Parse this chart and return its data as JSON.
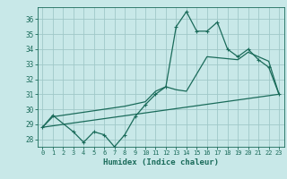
{
  "title": "",
  "xlabel": "Humidex (Indice chaleur)",
  "bg_color": "#c8e8e8",
  "grid_color": "#a0c8c8",
  "line_color": "#1a6b5a",
  "xlim": [
    -0.5,
    23.5
  ],
  "ylim": [
    27.5,
    36.8
  ],
  "yticks": [
    28,
    29,
    30,
    31,
    32,
    33,
    34,
    35,
    36
  ],
  "xticks": [
    0,
    1,
    2,
    3,
    4,
    5,
    6,
    7,
    8,
    9,
    10,
    11,
    12,
    13,
    14,
    15,
    16,
    17,
    18,
    19,
    20,
    21,
    22,
    23
  ],
  "series1_x": [
    0,
    1,
    3,
    4,
    5,
    6,
    7,
    8,
    9,
    10,
    11,
    12,
    13,
    14,
    15,
    16,
    17,
    18,
    19,
    20,
    21,
    22,
    23
  ],
  "series1_y": [
    28.8,
    29.6,
    28.5,
    27.8,
    28.5,
    28.3,
    27.5,
    28.3,
    29.5,
    30.3,
    31.0,
    31.5,
    35.5,
    36.5,
    35.2,
    35.2,
    35.8,
    34.0,
    33.5,
    34.0,
    33.3,
    32.8,
    31.0
  ],
  "series2_x": [
    0,
    1,
    8,
    10,
    11,
    12,
    13,
    14,
    16,
    19,
    20,
    21,
    22,
    23
  ],
  "series2_y": [
    28.8,
    29.5,
    30.2,
    30.5,
    31.2,
    31.5,
    31.3,
    31.2,
    33.5,
    33.3,
    33.8,
    33.5,
    33.2,
    31.0
  ],
  "series3_x": [
    0,
    23
  ],
  "series3_y": [
    28.8,
    31.0
  ]
}
